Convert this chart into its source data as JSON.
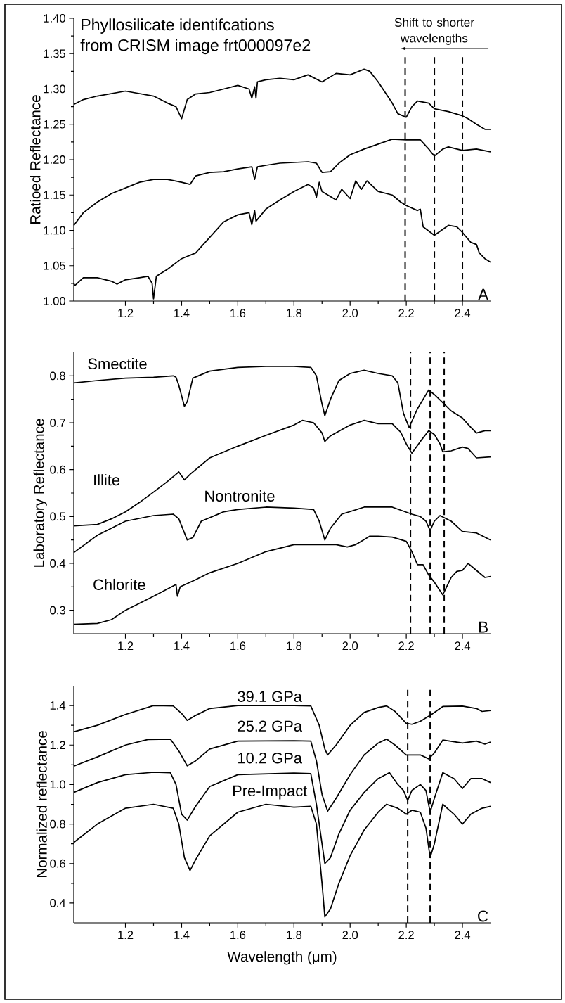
{
  "chart_data": [
    {
      "type": "line",
      "title": "Phyllosilicate identifcations",
      "subtitle": "from CRISM image frt000097e2",
      "ylabel": "Ratioed Reflectance",
      "xlim": [
        1.016,
        2.5
      ],
      "ylim": [
        1.0,
        1.4
      ],
      "xticks": [
        {
          "value": 1.2,
          "label": "1.2"
        },
        {
          "value": 1.4,
          "label": "1.4"
        },
        {
          "value": 1.6,
          "label": "1.6"
        },
        {
          "value": 1.8,
          "label": "1.8"
        },
        {
          "value": 2.0,
          "label": "2.0"
        },
        {
          "value": 2.2,
          "label": "2.2"
        },
        {
          "value": 2.4,
          "label": "2.4"
        }
      ],
      "yticks": [
        {
          "value": 1.0,
          "label": "1.00"
        },
        {
          "value": 1.05,
          "label": "1.05"
        },
        {
          "value": 1.1,
          "label": "1.10"
        },
        {
          "value": 1.15,
          "label": "1.15"
        },
        {
          "value": 1.2,
          "label": "1.20"
        },
        {
          "value": 1.25,
          "label": "1.25"
        },
        {
          "value": 1.3,
          "label": "1.30"
        },
        {
          "value": 1.35,
          "label": "1.35"
        },
        {
          "value": 1.4,
          "label": "1.40"
        }
      ],
      "series": [
        {
          "color": "#000000",
          "x": [
            1.016,
            1.05,
            1.1,
            1.2,
            1.3,
            1.35,
            1.38,
            1.4,
            1.42,
            1.45,
            1.5,
            1.55,
            1.6,
            1.64,
            1.65,
            1.66,
            1.665,
            1.67,
            1.7,
            1.75,
            1.8,
            1.85,
            1.9,
            1.95,
            2.0,
            2.05,
            2.07,
            2.1,
            2.15,
            2.17,
            2.2,
            2.22,
            2.24,
            2.28,
            2.3,
            2.35,
            2.4,
            2.42,
            2.45,
            2.48,
            2.5
          ],
          "values": [
            1.278,
            1.285,
            1.29,
            1.297,
            1.29,
            1.28,
            1.275,
            1.258,
            1.285,
            1.293,
            1.295,
            1.3,
            1.305,
            1.3,
            1.287,
            1.303,
            1.287,
            1.31,
            1.313,
            1.315,
            1.313,
            1.32,
            1.31,
            1.322,
            1.32,
            1.328,
            1.325,
            1.31,
            1.28,
            1.265,
            1.26,
            1.275,
            1.283,
            1.28,
            1.272,
            1.268,
            1.262,
            1.258,
            1.25,
            1.243,
            1.243
          ]
        },
        {
          "color": "#000000",
          "x": [
            1.016,
            1.05,
            1.1,
            1.15,
            1.2,
            1.25,
            1.3,
            1.35,
            1.4,
            1.43,
            1.45,
            1.5,
            1.55,
            1.6,
            1.65,
            1.66,
            1.67,
            1.7,
            1.75,
            1.8,
            1.85,
            1.88,
            1.9,
            1.93,
            1.96,
            2.0,
            2.05,
            2.1,
            2.15,
            2.2,
            2.25,
            2.28,
            2.3,
            2.33,
            2.35,
            2.4,
            2.45,
            2.5
          ],
          "values": [
            1.107,
            1.125,
            1.14,
            1.152,
            1.16,
            1.168,
            1.172,
            1.172,
            1.168,
            1.165,
            1.177,
            1.182,
            1.183,
            1.187,
            1.19,
            1.172,
            1.19,
            1.192,
            1.195,
            1.196,
            1.197,
            1.195,
            1.182,
            1.183,
            1.195,
            1.207,
            1.215,
            1.222,
            1.229,
            1.228,
            1.228,
            1.215,
            1.205,
            1.215,
            1.218,
            1.213,
            1.215,
            1.211
          ]
        },
        {
          "color": "#000000",
          "x": [
            1.016,
            1.02,
            1.05,
            1.1,
            1.15,
            1.17,
            1.2,
            1.25,
            1.28,
            1.295,
            1.3,
            1.31,
            1.35,
            1.4,
            1.45,
            1.5,
            1.55,
            1.6,
            1.64,
            1.65,
            1.66,
            1.665,
            1.7,
            1.75,
            1.8,
            1.85,
            1.87,
            1.88,
            1.89,
            1.9,
            1.95,
            1.97,
            2.0,
            2.02,
            2.04,
            2.06,
            2.1,
            2.15,
            2.18,
            2.2,
            2.24,
            2.25,
            2.26,
            2.3,
            2.35,
            2.38,
            2.4,
            2.43,
            2.45,
            2.46,
            2.48,
            2.5
          ],
          "values": [
            1.025,
            1.022,
            1.033,
            1.033,
            1.028,
            1.024,
            1.03,
            1.033,
            1.035,
            1.025,
            1.003,
            1.035,
            1.045,
            1.06,
            1.068,
            1.09,
            1.112,
            1.122,
            1.125,
            1.108,
            1.128,
            1.113,
            1.13,
            1.143,
            1.155,
            1.165,
            1.16,
            1.147,
            1.168,
            1.155,
            1.143,
            1.158,
            1.145,
            1.17,
            1.158,
            1.17,
            1.155,
            1.15,
            1.14,
            1.135,
            1.128,
            1.13,
            1.105,
            1.093,
            1.107,
            1.105,
            1.097,
            1.083,
            1.08,
            1.068,
            1.06,
            1.055
          ]
        }
      ],
      "ref_lines": [
        {
          "axis": "x",
          "value": 2.196,
          "line_style": "dashed"
        },
        {
          "axis": "x",
          "value": 2.3,
          "line_style": "dashed"
        },
        {
          "axis": "x",
          "value": 2.4,
          "line_style": "dashed"
        }
      ],
      "annotations": [
        "Shift to shorter wavelengths",
        "A"
      ]
    },
    {
      "type": "line",
      "ylabel": "Laboratory Reflectance",
      "xlim": [
        1.016,
        2.5
      ],
      "ylim": [
        0.25,
        0.85
      ],
      "xticks": [
        {
          "value": 1.2,
          "label": "1.2"
        },
        {
          "value": 1.4,
          "label": "1.4"
        },
        {
          "value": 1.6,
          "label": "1.6"
        },
        {
          "value": 1.8,
          "label": "1.8"
        },
        {
          "value": 2.0,
          "label": "2.0"
        },
        {
          "value": 2.2,
          "label": "2.2"
        },
        {
          "value": 2.4,
          "label": "2.4"
        }
      ],
      "yticks": [
        {
          "value": 0.3,
          "label": "0.3"
        },
        {
          "value": 0.4,
          "label": "0.4"
        },
        {
          "value": 0.5,
          "label": "0.5"
        },
        {
          "value": 0.6,
          "label": "0.6"
        },
        {
          "value": 0.7,
          "label": "0.7"
        },
        {
          "value": 0.8,
          "label": "0.8"
        }
      ],
      "series": [
        {
          "name": "Smectite",
          "color": "#000000",
          "x": [
            1.016,
            1.1,
            1.2,
            1.3,
            1.37,
            1.38,
            1.39,
            1.41,
            1.42,
            1.44,
            1.5,
            1.6,
            1.7,
            1.8,
            1.86,
            1.88,
            1.9,
            1.91,
            1.93,
            1.96,
            2.0,
            2.05,
            2.1,
            2.15,
            2.17,
            2.19,
            2.21,
            2.24,
            2.28,
            2.3,
            2.33,
            2.36,
            2.4,
            2.43,
            2.45,
            2.48,
            2.5
          ],
          "values": [
            0.785,
            0.79,
            0.795,
            0.797,
            0.8,
            0.797,
            0.78,
            0.735,
            0.745,
            0.795,
            0.81,
            0.818,
            0.82,
            0.82,
            0.818,
            0.8,
            0.74,
            0.715,
            0.75,
            0.79,
            0.805,
            0.812,
            0.805,
            0.8,
            0.785,
            0.72,
            0.69,
            0.73,
            0.77,
            0.76,
            0.743,
            0.725,
            0.71,
            0.69,
            0.678,
            0.683,
            0.683
          ]
        },
        {
          "name": "Illite",
          "color": "#000000",
          "x": [
            1.016,
            1.1,
            1.15,
            1.2,
            1.25,
            1.3,
            1.35,
            1.38,
            1.39,
            1.41,
            1.43,
            1.5,
            1.6,
            1.7,
            1.8,
            1.83,
            1.87,
            1.9,
            1.91,
            1.93,
            2.0,
            2.05,
            2.1,
            2.15,
            2.18,
            2.2,
            2.22,
            2.25,
            2.28,
            2.3,
            2.32,
            2.33,
            2.36,
            2.4,
            2.42,
            2.45,
            2.5
          ],
          "values": [
            0.48,
            0.483,
            0.495,
            0.51,
            0.53,
            0.552,
            0.575,
            0.59,
            0.595,
            0.578,
            0.59,
            0.625,
            0.65,
            0.673,
            0.695,
            0.705,
            0.7,
            0.678,
            0.66,
            0.672,
            0.695,
            0.705,
            0.698,
            0.698,
            0.68,
            0.655,
            0.635,
            0.66,
            0.683,
            0.675,
            0.655,
            0.638,
            0.64,
            0.648,
            0.645,
            0.625,
            0.627
          ]
        },
        {
          "name": "Nontronite",
          "color": "#000000",
          "x": [
            1.016,
            1.1,
            1.2,
            1.3,
            1.37,
            1.39,
            1.42,
            1.44,
            1.47,
            1.55,
            1.6,
            1.7,
            1.8,
            1.87,
            1.89,
            1.91,
            1.93,
            1.97,
            2.05,
            2.15,
            2.22,
            2.25,
            2.27,
            2.285,
            2.3,
            2.32,
            2.36,
            2.4,
            2.45,
            2.5
          ],
          "values": [
            0.423,
            0.46,
            0.49,
            0.502,
            0.505,
            0.495,
            0.45,
            0.455,
            0.49,
            0.51,
            0.515,
            0.52,
            0.518,
            0.515,
            0.49,
            0.45,
            0.475,
            0.505,
            0.52,
            0.52,
            0.505,
            0.5,
            0.49,
            0.47,
            0.49,
            0.502,
            0.49,
            0.468,
            0.465,
            0.45
          ]
        },
        {
          "name": "Chlorite",
          "color": "#000000",
          "x": [
            1.016,
            1.1,
            1.15,
            1.2,
            1.3,
            1.38,
            1.385,
            1.395,
            1.45,
            1.5,
            1.6,
            1.7,
            1.8,
            1.9,
            1.95,
            1.99,
            2.02,
            2.07,
            2.1,
            2.15,
            2.2,
            2.22,
            2.24,
            2.26,
            2.28,
            2.3,
            2.33,
            2.36,
            2.38,
            2.4,
            2.42,
            2.45,
            2.48,
            2.5
          ],
          "values": [
            0.27,
            0.272,
            0.28,
            0.3,
            0.33,
            0.355,
            0.33,
            0.35,
            0.365,
            0.38,
            0.4,
            0.425,
            0.44,
            0.44,
            0.44,
            0.435,
            0.44,
            0.458,
            0.458,
            0.456,
            0.447,
            0.425,
            0.397,
            0.397,
            0.375,
            0.36,
            0.333,
            0.37,
            0.383,
            0.385,
            0.4,
            0.385,
            0.37,
            0.372
          ]
        }
      ],
      "ref_lines": [
        {
          "axis": "x",
          "value": 2.215,
          "line_style": "dashed"
        },
        {
          "axis": "x",
          "value": 2.285,
          "line_style": "dashed"
        },
        {
          "axis": "x",
          "value": 2.335,
          "line_style": "dashed"
        }
      ],
      "annotations": [
        "B"
      ]
    },
    {
      "type": "line",
      "ylabel": "Normalized reflectance",
      "xlabel": "Wavelength (μm)",
      "xlim": [
        1.016,
        2.5
      ],
      "ylim": [
        0.3,
        1.5
      ],
      "xticks": [
        {
          "value": 1.2,
          "label": "1.2"
        },
        {
          "value": 1.4,
          "label": "1.4"
        },
        {
          "value": 1.6,
          "label": "1.6"
        },
        {
          "value": 1.8,
          "label": "1.8"
        },
        {
          "value": 2.0,
          "label": "2.0"
        },
        {
          "value": 2.2,
          "label": "2.2"
        },
        {
          "value": 2.4,
          "label": "2.4"
        }
      ],
      "yticks": [
        {
          "value": 0.4,
          "label": "0.4"
        },
        {
          "value": 0.6,
          "label": "0.6"
        },
        {
          "value": 0.8,
          "label": "0.8"
        },
        {
          "value": 1.0,
          "label": "1.0"
        },
        {
          "value": 1.2,
          "label": "1.2"
        },
        {
          "value": 1.4,
          "label": "1.4"
        }
      ],
      "series": [
        {
          "name": "39.1 GPa",
          "color": "#000000",
          "x": [
            1.016,
            1.1,
            1.2,
            1.3,
            1.37,
            1.4,
            1.42,
            1.45,
            1.5,
            1.6,
            1.8,
            1.86,
            1.89,
            1.91,
            1.92,
            1.95,
            2.0,
            2.05,
            2.1,
            2.13,
            2.16,
            2.2,
            2.22,
            2.25,
            2.29,
            2.33,
            2.4,
            2.45,
            2.47,
            2.5
          ],
          "values": [
            1.267,
            1.3,
            1.355,
            1.4,
            1.398,
            1.36,
            1.325,
            1.35,
            1.385,
            1.4,
            1.4,
            1.398,
            1.3,
            1.18,
            1.15,
            1.2,
            1.3,
            1.365,
            1.39,
            1.398,
            1.37,
            1.31,
            1.305,
            1.32,
            1.355,
            1.395,
            1.397,
            1.385,
            1.37,
            1.375
          ]
        },
        {
          "name": "25.2 GPa",
          "color": "#000000",
          "x": [
            1.016,
            1.1,
            1.2,
            1.28,
            1.36,
            1.39,
            1.42,
            1.45,
            1.5,
            1.6,
            1.8,
            1.86,
            1.88,
            1.9,
            1.92,
            1.95,
            2.0,
            2.05,
            2.1,
            2.13,
            2.16,
            2.2,
            2.25,
            2.28,
            2.3,
            2.33,
            2.4,
            2.45,
            2.48,
            2.5
          ],
          "values": [
            1.093,
            1.14,
            1.2,
            1.228,
            1.23,
            1.17,
            1.095,
            1.12,
            1.18,
            1.22,
            1.222,
            1.22,
            1.12,
            0.95,
            0.865,
            0.93,
            1.05,
            1.15,
            1.21,
            1.23,
            1.2,
            1.15,
            1.15,
            1.13,
            1.16,
            1.225,
            1.21,
            1.22,
            1.205,
            1.215
          ]
        },
        {
          "name": "10.2 GPa",
          "color": "#000000",
          "x": [
            1.016,
            1.1,
            1.2,
            1.3,
            1.36,
            1.38,
            1.4,
            1.42,
            1.45,
            1.5,
            1.6,
            1.8,
            1.86,
            1.88,
            1.9,
            1.91,
            1.93,
            1.96,
            2.0,
            2.05,
            2.1,
            2.14,
            2.17,
            2.19,
            2.205,
            2.22,
            2.25,
            2.27,
            2.285,
            2.3,
            2.33,
            2.37,
            2.4,
            2.43,
            2.47,
            2.5
          ],
          "values": [
            0.96,
            1.01,
            1.05,
            1.062,
            1.06,
            1.0,
            0.85,
            0.82,
            0.89,
            0.99,
            1.05,
            1.058,
            1.055,
            0.9,
            0.7,
            0.6,
            0.63,
            0.75,
            0.87,
            0.96,
            1.03,
            1.06,
            1.0,
            0.97,
            0.92,
            0.97,
            1.0,
            0.97,
            0.86,
            0.93,
            1.06,
            1.03,
            0.98,
            1.03,
            1.03,
            1.01
          ]
        },
        {
          "name": "Pre-Impact",
          "color": "#000000",
          "x": [
            1.016,
            1.1,
            1.2,
            1.3,
            1.37,
            1.39,
            1.41,
            1.43,
            1.45,
            1.5,
            1.6,
            1.7,
            1.8,
            1.86,
            1.88,
            1.9,
            1.91,
            1.93,
            1.96,
            2.0,
            2.05,
            2.1,
            2.13,
            2.17,
            2.2,
            2.22,
            2.25,
            2.27,
            2.285,
            2.3,
            2.33,
            2.37,
            2.4,
            2.43,
            2.47,
            2.5
          ],
          "values": [
            0.707,
            0.8,
            0.88,
            0.9,
            0.88,
            0.8,
            0.63,
            0.565,
            0.62,
            0.74,
            0.86,
            0.9,
            0.885,
            0.89,
            0.8,
            0.5,
            0.33,
            0.37,
            0.5,
            0.64,
            0.77,
            0.86,
            0.9,
            0.88,
            0.85,
            0.87,
            0.86,
            0.78,
            0.63,
            0.7,
            0.9,
            0.85,
            0.8,
            0.85,
            0.88,
            0.89
          ]
        }
      ],
      "ref_lines": [
        {
          "axis": "x",
          "value": 2.205,
          "line_style": "dashed"
        },
        {
          "axis": "x",
          "value": 2.285,
          "line_style": "dashed"
        }
      ],
      "annotations": [
        "C"
      ]
    }
  ]
}
